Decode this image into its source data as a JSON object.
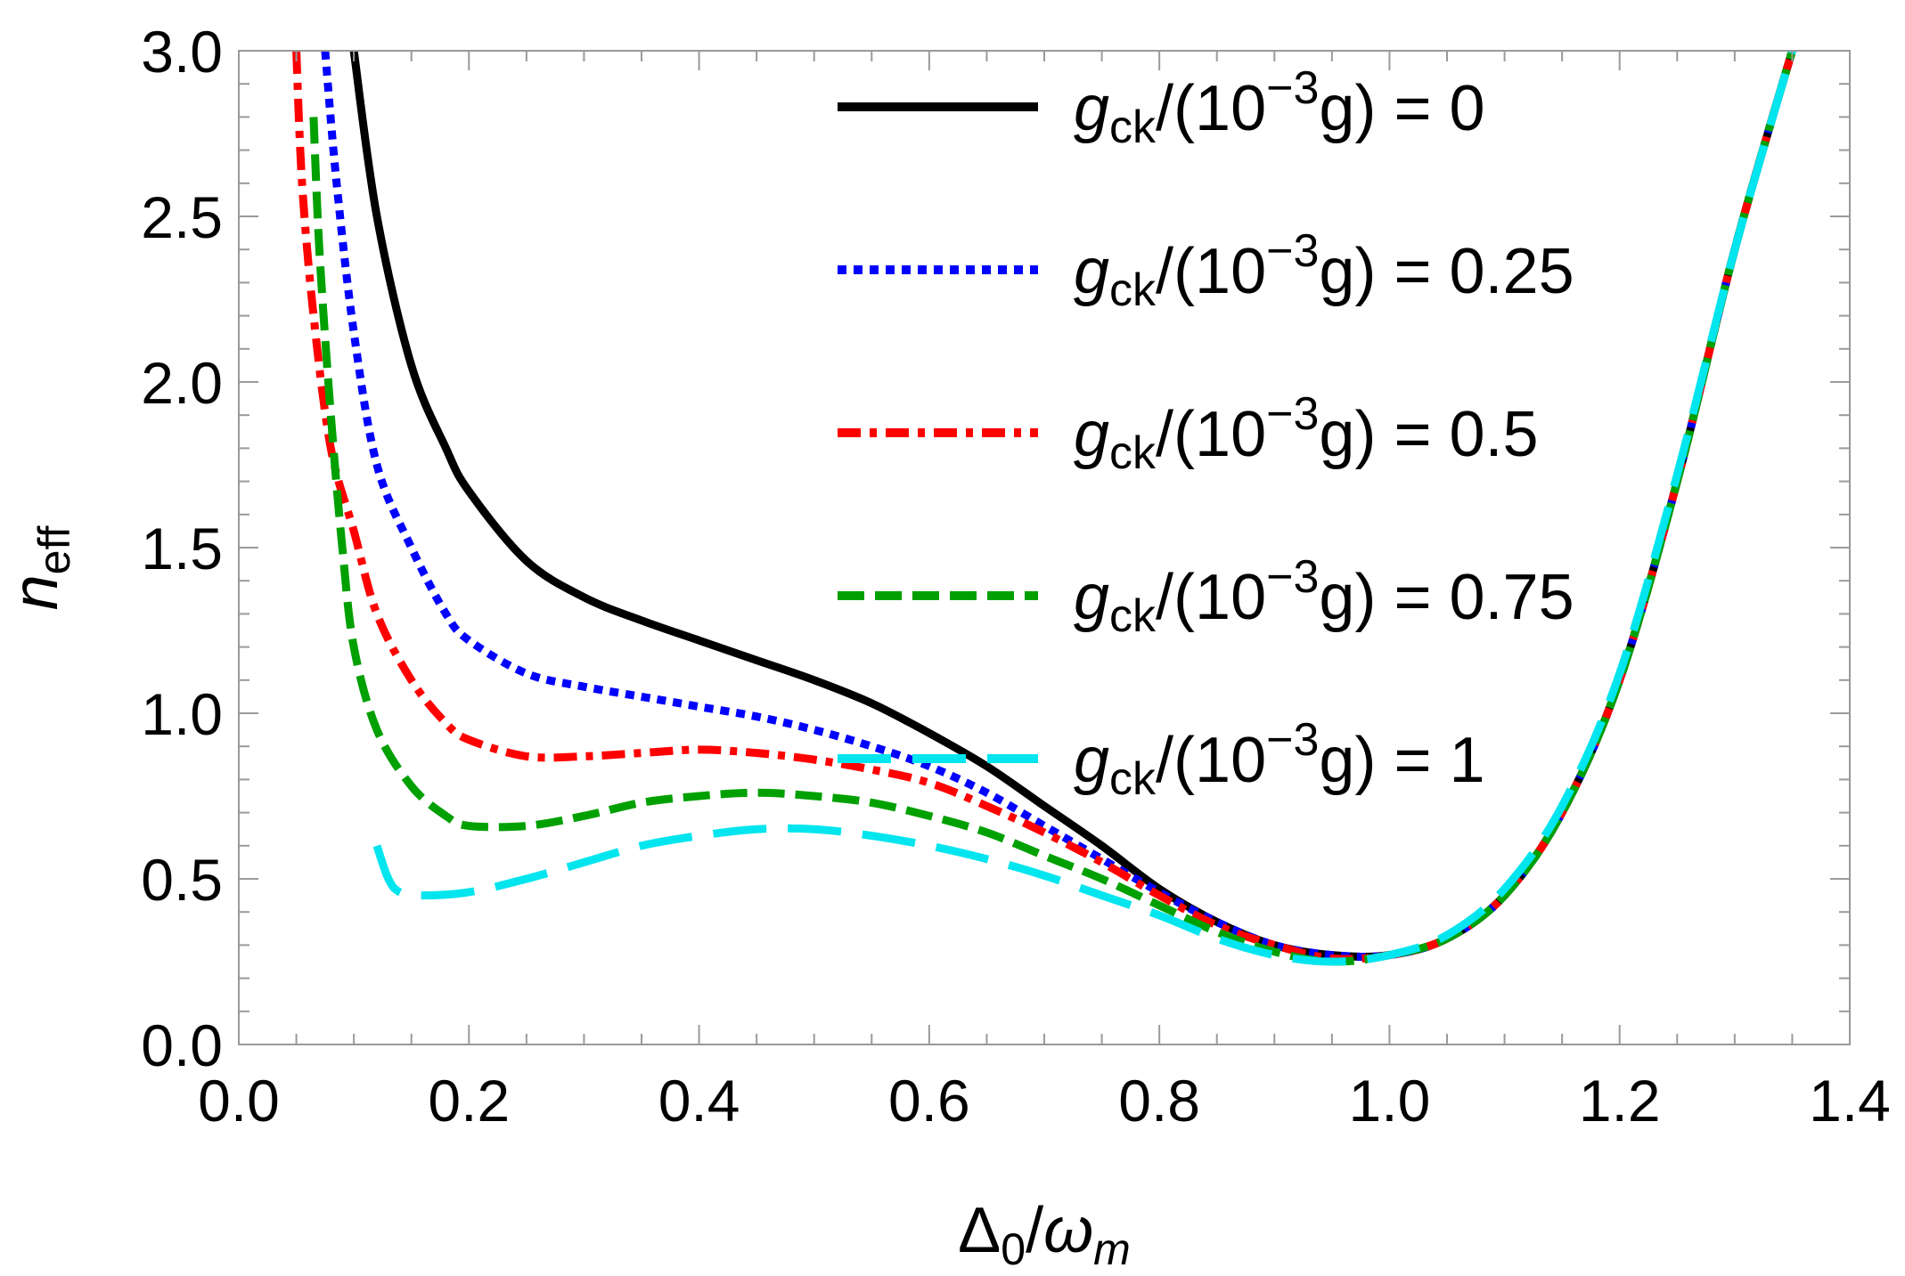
{
  "chart_data": {
    "type": "line",
    "title": "",
    "xlabel": "Δ₀/ωm",
    "ylabel": "neff",
    "xlim": [
      0.0,
      1.4
    ],
    "ylim": [
      0.0,
      3.0
    ],
    "grid": false,
    "legend_position": "top-right",
    "x_ticks": [
      0.0,
      0.2,
      0.4,
      0.6,
      0.8,
      1.0,
      1.2,
      1.4
    ],
    "x_tick_labels": [
      "0.0",
      "0.2",
      "0.4",
      "0.6",
      "0.8",
      "1.0",
      "1.2",
      "1.4"
    ],
    "y_ticks": [
      0.0,
      0.5,
      1.0,
      1.5,
      2.0,
      2.5,
      3.0
    ],
    "y_tick_labels": [
      "0.0",
      "0.5",
      "1.0",
      "1.5",
      "2.0",
      "2.5",
      "3.0"
    ],
    "xlabel_parts": {
      "main": "Δ",
      "sub": "0",
      "sep": "/",
      "main2": "ω",
      "sub2": "m"
    },
    "ylabel_parts": {
      "main": "n",
      "sub": "eff"
    },
    "legend_label_parts": {
      "prefix": "g",
      "sub": "ck",
      "mid": "/(10",
      "sup": "−3",
      "suffix": "g) = "
    },
    "series": [
      {
        "name": "gck/(10^-3 g) = 0",
        "value_label": "0",
        "color": "#000000",
        "style": "solid",
        "x": [
          0.1,
          0.12,
          0.15,
          0.18,
          0.2,
          0.25,
          0.3,
          0.35,
          0.4,
          0.45,
          0.5,
          0.55,
          0.6,
          0.65,
          0.7,
          0.75,
          0.8,
          0.85,
          0.9,
          0.95,
          1.0,
          1.05,
          1.1,
          1.15,
          1.2,
          1.25,
          1.3,
          1.35
        ],
        "values": [
          3.0,
          2.5,
          2.05,
          1.8,
          1.67,
          1.46,
          1.35,
          1.28,
          1.22,
          1.16,
          1.1,
          1.03,
          0.94,
          0.84,
          0.72,
          0.6,
          0.47,
          0.37,
          0.3,
          0.27,
          0.27,
          0.32,
          0.45,
          0.7,
          1.1,
          1.7,
          2.4,
          3.0
        ]
      },
      {
        "name": "gck/(10^-3 g) = 0.25",
        "value_label": "0.25",
        "color": "#0000ff",
        "style": "dotted",
        "x": [
          0.075,
          0.085,
          0.1,
          0.12,
          0.15,
          0.18,
          0.2,
          0.25,
          0.3,
          0.35,
          0.4,
          0.45,
          0.5,
          0.55,
          0.6,
          0.65,
          0.7,
          0.75,
          0.8,
          0.85,
          0.9,
          0.95,
          1.0,
          1.05,
          1.1,
          1.15,
          1.2,
          1.25,
          1.3,
          1.35
        ],
        "values": [
          3.0,
          2.6,
          2.15,
          1.75,
          1.5,
          1.3,
          1.22,
          1.12,
          1.08,
          1.05,
          1.02,
          0.99,
          0.95,
          0.9,
          0.84,
          0.76,
          0.66,
          0.56,
          0.46,
          0.37,
          0.3,
          0.27,
          0.27,
          0.32,
          0.45,
          0.7,
          1.1,
          1.7,
          2.4,
          3.0
        ]
      },
      {
        "name": "gck/(10^-3 g) = 0.5",
        "value_label": "0.5",
        "color": "#ff0000",
        "style": "dashdot",
        "x": [
          0.05,
          0.055,
          0.065,
          0.08,
          0.1,
          0.12,
          0.15,
          0.18,
          0.2,
          0.25,
          0.3,
          0.35,
          0.4,
          0.45,
          0.5,
          0.55,
          0.6,
          0.65,
          0.7,
          0.75,
          0.8,
          0.85,
          0.9,
          0.95,
          1.0,
          1.05,
          1.1,
          1.15,
          1.2,
          1.25,
          1.3,
          1.35
        ],
        "values": [
          3.0,
          2.6,
          2.2,
          1.8,
          1.55,
          1.3,
          1.1,
          0.97,
          0.92,
          0.87,
          0.87,
          0.88,
          0.89,
          0.88,
          0.86,
          0.83,
          0.79,
          0.72,
          0.64,
          0.55,
          0.45,
          0.36,
          0.3,
          0.26,
          0.27,
          0.32,
          0.45,
          0.7,
          1.1,
          1.7,
          2.4,
          3.0
        ]
      },
      {
        "name": "gck/(10^-3 g) = 0.75",
        "value_label": "0.75",
        "color": "#00a000",
        "style": "dashed",
        "x": [
          0.065,
          0.07,
          0.08,
          0.09,
          0.1,
          0.12,
          0.15,
          0.18,
          0.2,
          0.25,
          0.3,
          0.35,
          0.4,
          0.45,
          0.5,
          0.55,
          0.6,
          0.65,
          0.7,
          0.75,
          0.8,
          0.85,
          0.9,
          0.95,
          1.0,
          1.05,
          1.1,
          1.15,
          1.2,
          1.25,
          1.3,
          1.35
        ],
        "values": [
          2.8,
          2.4,
          1.9,
          1.5,
          1.2,
          0.95,
          0.78,
          0.69,
          0.66,
          0.66,
          0.69,
          0.73,
          0.75,
          0.76,
          0.75,
          0.73,
          0.69,
          0.64,
          0.57,
          0.5,
          0.42,
          0.34,
          0.28,
          0.25,
          0.27,
          0.32,
          0.45,
          0.7,
          1.1,
          1.7,
          2.4,
          3.0
        ]
      },
      {
        "name": "gck/(10^-3 g) = 1",
        "value_label": "1",
        "color": "#00e5ee",
        "style": "longdash",
        "x": [
          0.12,
          0.13,
          0.14,
          0.16,
          0.2,
          0.25,
          0.3,
          0.35,
          0.4,
          0.45,
          0.5,
          0.55,
          0.6,
          0.65,
          0.7,
          0.75,
          0.8,
          0.85,
          0.9,
          0.95,
          1.0,
          1.05,
          1.1,
          1.15,
          1.2,
          1.25,
          1.3,
          1.35
        ],
        "values": [
          0.6,
          0.5,
          0.46,
          0.45,
          0.46,
          0.5,
          0.55,
          0.6,
          0.63,
          0.65,
          0.65,
          0.63,
          0.6,
          0.56,
          0.51,
          0.45,
          0.39,
          0.32,
          0.27,
          0.25,
          0.27,
          0.33,
          0.47,
          0.72,
          1.12,
          1.72,
          2.4,
          3.0
        ]
      }
    ]
  }
}
